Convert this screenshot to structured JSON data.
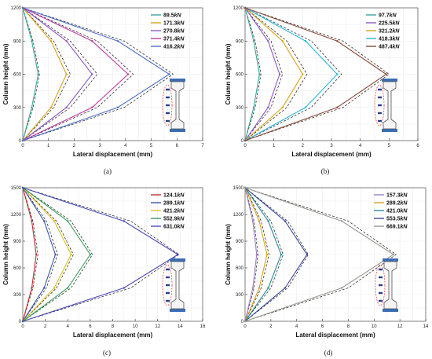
{
  "colors": {
    "measured_dash": "#333333",
    "column_body": "#555555",
    "column_cap": "#3b6db5",
    "crack_ellipse": "#e03030",
    "stud": "#2b3d8c"
  },
  "icons": [
    "column-section-icon"
  ],
  "chart_data": [
    {
      "type": "line",
      "caption": "(a)",
      "xlabel": "Lateral displacement (mm)",
      "ylabel": "Column height (mm)",
      "xlim": [
        0,
        7
      ],
      "ylim": [
        0,
        1200
      ],
      "xticks": [
        0,
        1,
        2,
        3,
        4,
        5,
        6,
        7
      ],
      "yticks": [
        0,
        300,
        600,
        900,
        1200
      ],
      "grid": true,
      "legend_position": "top-right",
      "heights": [
        0,
        300,
        600,
        900,
        1200
      ],
      "series": [
        {
          "name": "89.5kN",
          "value": "89.5",
          "unit": "kN",
          "color": "#3aa89a",
          "values": [
            0,
            0.35,
            0.6,
            0.35,
            0
          ],
          "measured": [
            0,
            0.4,
            0.65,
            0.4,
            0
          ]
        },
        {
          "name": "171.3kN",
          "value": "171.3",
          "unit": "kN",
          "color": "#d9a318",
          "values": [
            0,
            1.1,
            1.7,
            1.1,
            0
          ],
          "measured": [
            0,
            1.2,
            1.85,
            1.2,
            0
          ]
        },
        {
          "name": "270.8kN",
          "value": "270.8",
          "unit": "kN",
          "color": "#8e5ac8",
          "values": [
            0,
            1.7,
            2.7,
            1.7,
            0
          ],
          "measured": [
            0,
            1.85,
            2.9,
            1.85,
            0
          ]
        },
        {
          "name": "371.4kN",
          "value": "371.4",
          "unit": "kN",
          "color": "#c03aa0",
          "values": [
            0,
            2.7,
            4.1,
            2.7,
            0
          ],
          "measured": [
            0,
            2.9,
            4.3,
            2.9,
            0
          ]
        },
        {
          "name": "416.2kN",
          "value": "416.2",
          "unit": "kN",
          "color": "#4d6fc9",
          "values": [
            0,
            3.7,
            5.7,
            3.7,
            0
          ],
          "measured": [
            0,
            3.95,
            5.85,
            3.95,
            0
          ]
        }
      ]
    },
    {
      "type": "line",
      "caption": "(b)",
      "xlabel": "Lateral displacement (mm)",
      "ylabel": "Column height (mm)",
      "xlim": [
        0,
        6
      ],
      "ylim": [
        0,
        1200
      ],
      "xticks": [
        0,
        1,
        2,
        3,
        4,
        5,
        6
      ],
      "yticks": [
        0,
        300,
        600,
        900,
        1200
      ],
      "grid": true,
      "legend_position": "top-right",
      "heights": [
        0,
        300,
        600,
        900,
        1200
      ],
      "series": [
        {
          "name": "97.7kN",
          "value": "97.7",
          "unit": "kN",
          "color": "#3aa89a",
          "values": [
            0,
            0.3,
            0.5,
            0.3,
            0
          ],
          "measured": [
            0,
            0.35,
            0.55,
            0.35,
            0
          ]
        },
        {
          "name": "225.5kN",
          "value": "225.5",
          "unit": "kN",
          "color": "#8e5ac8",
          "values": [
            0,
            0.8,
            1.2,
            0.8,
            0
          ],
          "measured": [
            0,
            0.9,
            1.3,
            0.9,
            0
          ]
        },
        {
          "name": "321.2kN",
          "value": "321.2",
          "unit": "kN",
          "color": "#d9a318",
          "values": [
            0,
            1.3,
            2.0,
            1.3,
            0
          ],
          "measured": [
            0,
            1.45,
            2.15,
            1.45,
            0
          ]
        },
        {
          "name": "418.3kN",
          "value": "418.3",
          "unit": "kN",
          "color": "#2bb8d8",
          "values": [
            0,
            2.1,
            3.2,
            2.1,
            0
          ],
          "measured": [
            0,
            2.3,
            3.35,
            2.3,
            0
          ]
        },
        {
          "name": "487.4kN",
          "value": "487.4",
          "unit": "kN",
          "color": "#8a4a3a",
          "values": [
            0,
            3.2,
            4.9,
            3.2,
            0
          ],
          "measured": [
            0,
            3.4,
            5.0,
            3.4,
            0
          ]
        }
      ]
    },
    {
      "type": "line",
      "caption": "(c)",
      "xlabel": "Lateral displacement (mm)",
      "ylabel": "Column height (mm)",
      "xlim": [
        0,
        16
      ],
      "ylim": [
        0,
        1500
      ],
      "xticks": [
        0,
        2,
        4,
        6,
        8,
        10,
        12,
        14,
        16
      ],
      "yticks": [
        0,
        300,
        600,
        900,
        1200,
        1500
      ],
      "grid": true,
      "legend_position": "top-right",
      "heights": [
        0,
        375,
        750,
        1125,
        1500
      ],
      "series": [
        {
          "name": "124.1kN",
          "value": "124.1",
          "unit": "kN",
          "color": "#c23030",
          "values": [
            0,
            0.8,
            1.2,
            0.8,
            0
          ],
          "measured": [
            0,
            0.9,
            1.35,
            0.9,
            0
          ]
        },
        {
          "name": "289.1kN",
          "value": "289.1",
          "unit": "kN",
          "color": "#3a55b0",
          "values": [
            0,
            1.9,
            2.9,
            1.9,
            0
          ],
          "measured": [
            0,
            2.1,
            3.1,
            2.1,
            0
          ]
        },
        {
          "name": "421.2kN",
          "value": "421.2",
          "unit": "kN",
          "color": "#e0c020",
          "values": [
            0,
            2.8,
            4.3,
            2.8,
            0
          ],
          "measured": [
            0,
            3.0,
            4.5,
            3.0,
            0
          ]
        },
        {
          "name": "552.9kN",
          "value": "552.9",
          "unit": "kN",
          "color": "#3aa060",
          "values": [
            0,
            4.0,
            6.0,
            4.0,
            0
          ],
          "measured": [
            0,
            4.3,
            6.2,
            4.3,
            0
          ]
        },
        {
          "name": "631.0kN",
          "value": "631.0",
          "unit": "kN",
          "color": "#4a4ab8",
          "values": [
            0,
            9.0,
            13.8,
            9.0,
            0
          ],
          "measured": [
            0,
            9.6,
            13.9,
            9.6,
            0
          ]
        }
      ]
    },
    {
      "type": "line",
      "caption": "(d)",
      "xlabel": "Lateral displacement (mm)",
      "ylabel": "Column height (mm)",
      "xlim": [
        0,
        14
      ],
      "ylim": [
        0,
        1500
      ],
      "xticks": [
        0,
        2,
        4,
        6,
        8,
        10,
        12,
        14
      ],
      "yticks": [
        0,
        300,
        600,
        900,
        1200,
        1500
      ],
      "grid": true,
      "legend_position": "top-right",
      "heights": [
        0,
        375,
        750,
        1125,
        1500
      ],
      "series": [
        {
          "name": "157.3kN",
          "value": "157.3",
          "unit": "kN",
          "color": "#a080c8",
          "values": [
            0,
            0.6,
            0.9,
            0.6,
            0
          ],
          "measured": [
            0,
            0.7,
            1.0,
            0.7,
            0
          ]
        },
        {
          "name": "289.2kN",
          "value": "289.2",
          "unit": "kN",
          "color": "#d9a318",
          "values": [
            0,
            1.1,
            1.7,
            1.1,
            0
          ],
          "measured": [
            0,
            1.25,
            1.85,
            1.25,
            0
          ]
        },
        {
          "name": "421.0kN",
          "value": "421.0",
          "unit": "kN",
          "color": "#2a8a9a",
          "values": [
            0,
            1.8,
            2.8,
            1.8,
            0
          ],
          "measured": [
            0,
            2.0,
            2.95,
            2.0,
            0
          ]
        },
        {
          "name": "553.5kN",
          "value": "553.5",
          "unit": "kN",
          "color": "#3a4aa0",
          "values": [
            0,
            3.1,
            4.8,
            3.1,
            0
          ],
          "measured": [
            0,
            3.3,
            4.9,
            3.3,
            0
          ]
        },
        {
          "name": "669.1kN",
          "value": "669.1",
          "unit": "kN",
          "color": "#9a9a90",
          "values": [
            0,
            7.5,
            11.5,
            7.5,
            0
          ],
          "measured": [
            0,
            8.0,
            11.7,
            8.0,
            0
          ]
        }
      ]
    }
  ]
}
